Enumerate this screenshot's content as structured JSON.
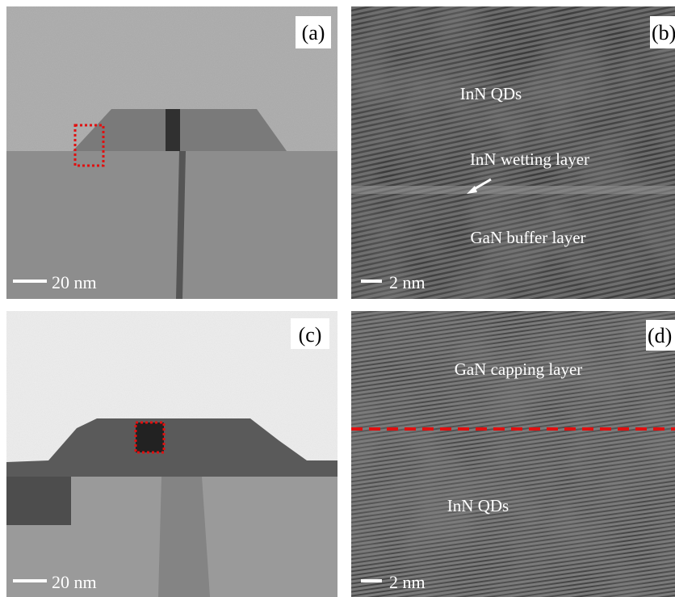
{
  "panels": [
    {
      "label": "(a)",
      "scale_bar": "20 nm"
    },
    {
      "label": "(b)",
      "scale_bar": "2 nm",
      "annotations": [
        "InN QDs",
        "InN wetting layer",
        "GaN buffer layer"
      ]
    },
    {
      "label": "(c)",
      "scale_bar": "20 nm"
    },
    {
      "label": "(d)",
      "scale_bar": "2 nm",
      "annotations": [
        "GaN capping layer",
        "InN QDs"
      ]
    }
  ]
}
